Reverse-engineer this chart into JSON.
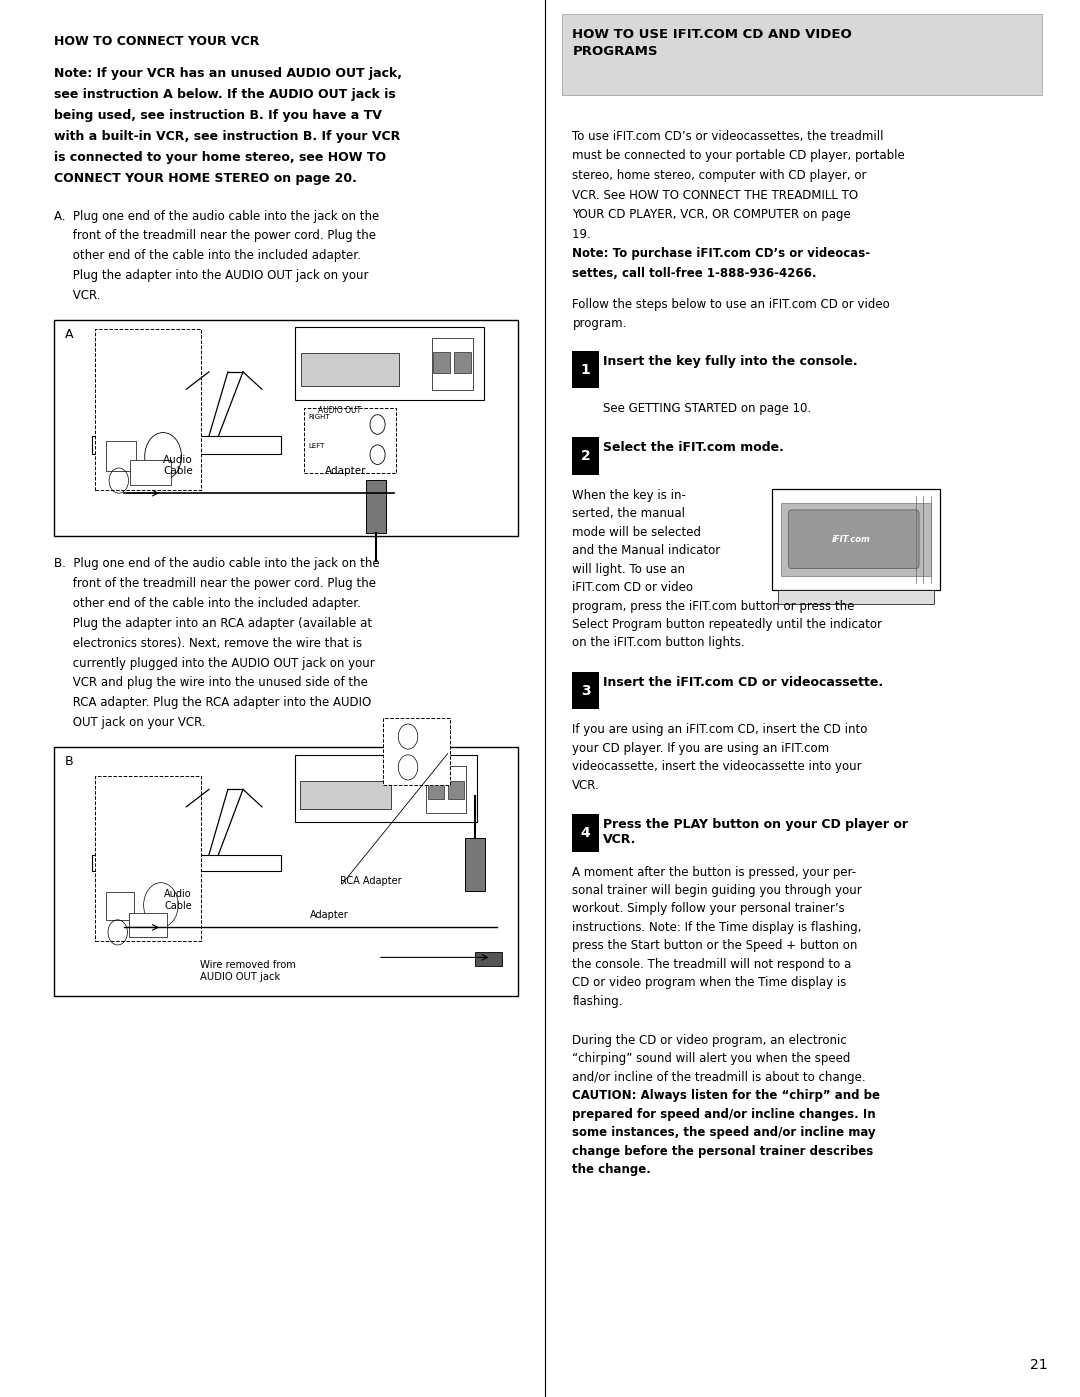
{
  "page_width": 10.8,
  "page_height": 13.97,
  "bg_color": "#ffffff",
  "left_title": "HOW TO CONNECT YOUR VCR",
  "right_header_bg": "#e0e0e0",
  "step1_title": "Insert the key fully into the console.",
  "step1_body": "See GETTING STARTED on page 10.",
  "step2_title": "Select the iFIT.com mode.",
  "step3_title": "Insert the iFIT.com CD or videocassette.",
  "step4_title": "Press the PLAY button on your CD player or\nVCR.",
  "page_number": "21",
  "note_lines": [
    "Note: If your VCR has an unused AUDIO OUT jack,",
    "see instruction A below. If the AUDIO OUT jack is",
    "being used, see instruction B. If you have a TV",
    "with a built-in VCR, see instruction B. If your VCR",
    "is connected to your home stereo, see HOW TO",
    "CONNECT YOUR HOME STEREO on page 20."
  ],
  "instr_a_lines": [
    "A.  Plug one end of the audio cable into the jack on the",
    "     front of the treadmill near the power cord. Plug the",
    "     other end of the cable into the included adapter.",
    "     Plug the adapter into the AUDIO OUT jack on your",
    "     VCR."
  ],
  "instr_b_lines": [
    "B.  Plug one end of the audio cable into the jack on the",
    "     front of the treadmill near the power cord. Plug the",
    "     other end of the cable into the included adapter.",
    "     Plug the adapter into an RCA adapter (available at",
    "     electronics stores). Next, remove the wire that is",
    "     currently plugged into the AUDIO OUT jack on your",
    "     VCR and plug the wire into the unused side of the",
    "     RCA adapter. Plug the RCA adapter into the AUDIO",
    "     OUT jack on your VCR."
  ],
  "right_para1_lines": [
    "To use iFIT.com CD’s or videocassettes, the treadmill",
    "must be connected to your portable CD player, portable",
    "stereo, home stereo, computer with CD player, or",
    "VCR. See HOW TO CONNECT THE TREADMILL TO",
    "YOUR CD PLAYER, VCR, OR COMPUTER on page",
    "19. "
  ],
  "right_para1_bold1": "Note: To purchase iFIT.com CD’s or videocas-",
  "right_para1_bold2": "settes, call toll-free 1-888-936-4266.",
  "right_para2_lines": [
    "Follow the steps below to use an iFIT.com CD or video",
    "program."
  ],
  "step2_lines": [
    "When the key is in-",
    "serted, the manual",
    "mode will be selected",
    "and the Manual indicator",
    "will light. To use an",
    "iFIT.com CD or video"
  ],
  "step2_cont": [
    "program, press the iFIT.com button or press the",
    "Select Program button repeatedly until the indicator",
    "on the iFIT.com button lights."
  ],
  "step3_lines": [
    "If you are using an iFIT.com CD, insert the CD into",
    "your CD player. If you are using an iFIT.com",
    "videocassette, insert the videocassette into your",
    "VCR."
  ],
  "step4_lines": [
    "A moment after the button is pressed, your per-",
    "sonal trainer will begin guiding you through your",
    "workout. Simply follow your personal trainer’s",
    "instructions. Note: If the Time display is flashing,",
    "press the Start button or the Speed + button on",
    "the console. The treadmill will not respond to a",
    "CD or video program when the Time display is",
    "flashing."
  ],
  "caution_para_lines": [
    "During the CD or video program, an electronic",
    "“chirping” sound will alert you when the speed",
    "and/or incline of the treadmill is about to change."
  ],
  "caution_bold_lines": [
    "CAUTION: Always listen for the “chirp” and be",
    "prepared for speed and/or incline changes. In",
    "some instances, the speed and/or incline may",
    "change before the personal trainer describes",
    "the change."
  ]
}
